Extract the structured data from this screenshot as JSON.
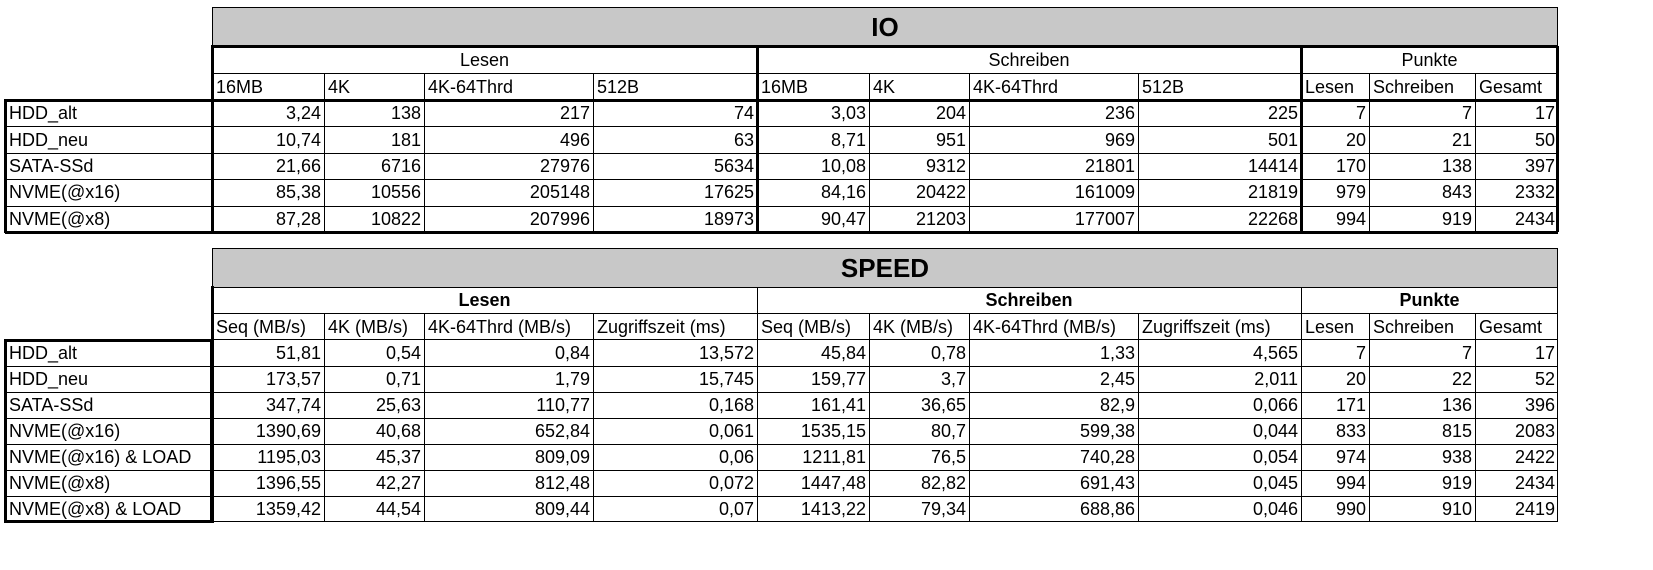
{
  "io": {
    "title": "IO",
    "groups": [
      "Lesen",
      "Schreiben",
      "Punkte"
    ],
    "subheaders": [
      "16MB",
      "4K",
      "4K-64Thrd",
      "512B",
      "16MB",
      "4K",
      "4K-64Thrd",
      "512B",
      "Lesen",
      "Schreiben",
      "Gesamt"
    ],
    "rows": [
      {
        "label": "HDD_alt",
        "values": [
          "3,24",
          "138",
          "217",
          "74",
          "3,03",
          "204",
          "236",
          "225",
          "7",
          "7",
          "17"
        ]
      },
      {
        "label": "HDD_neu",
        "values": [
          "10,74",
          "181",
          "496",
          "63",
          "8,71",
          "951",
          "969",
          "501",
          "20",
          "21",
          "50"
        ]
      },
      {
        "label": "SATA-SSd",
        "values": [
          "21,66",
          "6716",
          "27976",
          "5634",
          "10,08",
          "9312",
          "21801",
          "14414",
          "170",
          "138",
          "397"
        ]
      },
      {
        "label": "NVME(@x16)",
        "values": [
          "85,38",
          "10556",
          "205148",
          "17625",
          "84,16",
          "20422",
          "161009",
          "21819",
          "979",
          "843",
          "2332"
        ]
      },
      {
        "label": "NVME(@x8)",
        "values": [
          "87,28",
          "10822",
          "207996",
          "18973",
          "90,47",
          "21203",
          "177007",
          "22268",
          "994",
          "919",
          "2434"
        ]
      }
    ]
  },
  "speed": {
    "title": "SPEED",
    "groups": [
      "Lesen",
      "Schreiben",
      "Punkte"
    ],
    "subheaders": [
      "Seq (MB/s)",
      "4K (MB/s)",
      "4K-64Thrd (MB/s)",
      "Zugriffszeit (ms)",
      "Seq (MB/s)",
      "4K (MB/s)",
      "4K-64Thrd (MB/s)",
      "Zugriffszeit (ms)",
      "Lesen",
      "Schreiben",
      "Gesamt"
    ],
    "rows": [
      {
        "label": "HDD_alt",
        "values": [
          "51,81",
          "0,54",
          "0,84",
          "13,572",
          "45,84",
          "0,78",
          "1,33",
          "4,565",
          "7",
          "7",
          "17"
        ]
      },
      {
        "label": "HDD_neu",
        "values": [
          "173,57",
          "0,71",
          "1,79",
          "15,745",
          "159,77",
          "3,7",
          "2,45",
          "2,011",
          "20",
          "22",
          "52"
        ]
      },
      {
        "label": "SATA-SSd",
        "values": [
          "347,74",
          "25,63",
          "110,77",
          "0,168",
          "161,41",
          "36,65",
          "82,9",
          "0,066",
          "171",
          "136",
          "396"
        ]
      },
      {
        "label": "NVME(@x16)",
        "values": [
          "1390,69",
          "40,68",
          "652,84",
          "0,061",
          "1535,15",
          "80,7",
          "599,38",
          "0,044",
          "833",
          "815",
          "2083"
        ]
      },
      {
        "label": "NVME(@x16) & LOAD",
        "values": [
          "1195,03",
          "45,37",
          "809,09",
          "0,06",
          "1211,81",
          "76,5",
          "740,28",
          "0,054",
          "974",
          "938",
          "2422"
        ]
      },
      {
        "label": "NVME(@x8)",
        "values": [
          "1396,55",
          "42,27",
          "812,48",
          "0,072",
          "1447,48",
          "82,82",
          "691,43",
          "0,045",
          "994",
          "919",
          "2434"
        ]
      },
      {
        "label": "NVME(@x8) & LOAD",
        "values": [
          "1359,42",
          "44,54",
          "809,44",
          "0,07",
          "1413,22",
          "79,34",
          "688,86",
          "0,046",
          "990",
          "910",
          "2419"
        ]
      }
    ]
  }
}
